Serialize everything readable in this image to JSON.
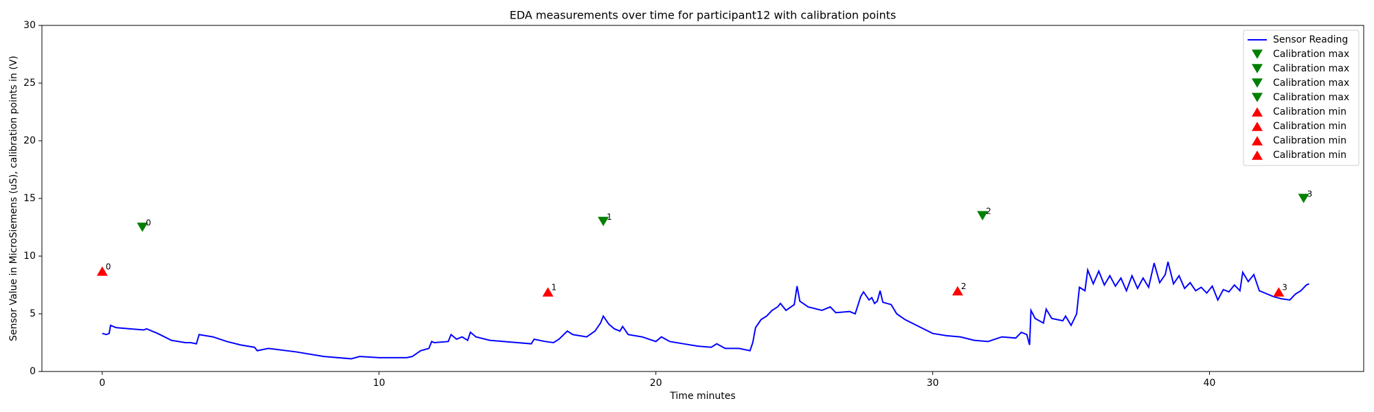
{
  "chart_data": {
    "type": "line",
    "title": "EDA measurements over time for participant12 with calibration points",
    "xlabel": "Time minutes",
    "ylabel": "Sensor Value in MicroSiemens (uS), calibration points in (V)",
    "xlim": [
      -2.18,
      45.57
    ],
    "ylim": [
      0,
      30
    ],
    "xticks": [
      0,
      10,
      20,
      30,
      40
    ],
    "yticks": [
      0,
      5,
      10,
      15,
      20,
      25,
      30
    ],
    "legend": "upper right",
    "series": [
      {
        "name": "Sensor Reading",
        "color": "#0000ff",
        "marker": "line",
        "x": [
          0,
          0.15,
          0.25,
          0.3,
          0.5,
          1,
          1.5,
          1.6,
          2,
          2.5,
          3,
          3.2,
          3.4,
          3.5,
          4,
          4.5,
          5,
          5.5,
          5.6,
          6,
          7,
          8,
          9,
          9.3,
          10,
          11,
          11.2,
          11.5,
          11.8,
          11.9,
          12,
          12.5,
          12.6,
          12.8,
          13,
          13.2,
          13.3,
          13.5,
          14,
          15,
          15.5,
          15.6,
          16,
          16.3,
          16.5,
          16.8,
          17,
          17.5,
          17.8,
          18,
          18.1,
          18.3,
          18.5,
          18.7,
          18.8,
          19,
          19.5,
          20,
          20.2,
          20.5,
          21,
          21.5,
          22,
          22.2,
          22.5,
          23,
          23.4,
          23.5,
          23.6,
          23.8,
          24,
          24.2,
          24.4,
          24.5,
          24.7,
          25,
          25.1,
          25.2,
          25.5,
          26,
          26.3,
          26.5,
          27,
          27.2,
          27.4,
          27.5,
          27.7,
          27.8,
          27.9,
          28,
          28.1,
          28.2,
          28.5,
          28.7,
          29,
          29.5,
          30,
          30.5,
          31,
          31.5,
          32,
          32.5,
          33,
          33.2,
          33.4,
          33.5,
          33.55,
          33.7,
          34,
          34.1,
          34.3,
          34.7,
          34.8,
          35,
          35.2,
          35.3,
          35.5,
          35.6,
          35.8,
          36,
          36.2,
          36.4,
          36.6,
          36.8,
          37,
          37.2,
          37.4,
          37.6,
          37.8,
          38,
          38.2,
          38.4,
          38.5,
          38.7,
          38.9,
          39.1,
          39.3,
          39.5,
          39.7,
          39.9,
          40.1,
          40.3,
          40.5,
          40.7,
          40.9,
          41.1,
          41.2,
          41.4,
          41.6,
          41.8,
          42,
          42.3,
          42.6,
          42.9,
          43.1,
          43.3,
          43.5,
          43.6
        ],
        "values": [
          3.3,
          3.2,
          3.3,
          4.0,
          3.8,
          3.7,
          3.6,
          3.7,
          3.3,
          2.7,
          2.5,
          2.5,
          2.4,
          3.2,
          3.0,
          2.6,
          2.3,
          2.1,
          1.8,
          2.0,
          1.7,
          1.3,
          1.1,
          1.3,
          1.2,
          1.2,
          1.3,
          1.8,
          2.0,
          2.6,
          2.5,
          2.6,
          3.2,
          2.8,
          3.0,
          2.7,
          3.4,
          3.0,
          2.7,
          2.5,
          2.4,
          2.8,
          2.6,
          2.5,
          2.8,
          3.5,
          3.2,
          3.0,
          3.5,
          4.2,
          4.8,
          4.1,
          3.7,
          3.5,
          3.9,
          3.2,
          3.0,
          2.6,
          3.0,
          2.6,
          2.4,
          2.2,
          2.1,
          2.4,
          2.0,
          2.0,
          1.8,
          2.5,
          3.8,
          4.5,
          4.8,
          5.3,
          5.6,
          5.9,
          5.3,
          5.8,
          7.4,
          6.1,
          5.6,
          5.3,
          5.6,
          5.1,
          5.2,
          5.0,
          6.5,
          6.9,
          6.2,
          6.4,
          5.9,
          6.1,
          7.0,
          6.0,
          5.8,
          5.0,
          4.5,
          3.9,
          3.3,
          3.1,
          3.0,
          2.7,
          2.6,
          3.0,
          2.9,
          3.4,
          3.2,
          2.3,
          5.3,
          4.6,
          4.2,
          5.4,
          4.6,
          4.4,
          4.8,
          4.0,
          5.0,
          7.3,
          7.0,
          8.8,
          7.6,
          8.7,
          7.5,
          8.3,
          7.4,
          8.1,
          7.0,
          8.3,
          7.2,
          8.1,
          7.3,
          9.4,
          7.7,
          8.4,
          9.5,
          7.6,
          8.3,
          7.2,
          7.7,
          7.0,
          7.3,
          6.8,
          7.4,
          6.2,
          7.1,
          6.9,
          7.5,
          7.0,
          8.6,
          7.8,
          8.4,
          7.0,
          6.8,
          6.5,
          6.3,
          6.2,
          6.7,
          7.0,
          7.5,
          7.6
        ]
      },
      {
        "name": "Calibration max",
        "color": "#008000",
        "marker": "v",
        "x": [
          1.45
        ],
        "values": [
          12.5
        ],
        "labels": [
          "0"
        ]
      },
      {
        "name": "Calibration max",
        "color": "#008000",
        "marker": "v",
        "x": [
          18.1
        ],
        "values": [
          13.0
        ],
        "labels": [
          "1"
        ]
      },
      {
        "name": "Calibration max",
        "color": "#008000",
        "marker": "v",
        "x": [
          31.8
        ],
        "values": [
          13.5
        ],
        "labels": [
          "2"
        ]
      },
      {
        "name": "Calibration max",
        "color": "#008000",
        "marker": "v",
        "x": [
          43.4
        ],
        "values": [
          15.0
        ],
        "labels": [
          "3"
        ]
      },
      {
        "name": "Calibration min",
        "color": "#ff0000",
        "marker": "^",
        "x": [
          0
        ],
        "values": [
          8.7
        ],
        "labels": [
          "0"
        ]
      },
      {
        "name": "Calibration min",
        "color": "#ff0000",
        "marker": "^",
        "x": [
          16.1
        ],
        "values": [
          6.9
        ],
        "labels": [
          "1"
        ]
      },
      {
        "name": "Calibration min",
        "color": "#ff0000",
        "marker": "^",
        "x": [
          30.9
        ],
        "values": [
          7.0
        ],
        "labels": [
          "2"
        ]
      },
      {
        "name": "Calibration min",
        "color": "#ff0000",
        "marker": "^",
        "x": [
          42.5
        ],
        "values": [
          6.9
        ],
        "labels": [
          "3"
        ]
      }
    ]
  }
}
